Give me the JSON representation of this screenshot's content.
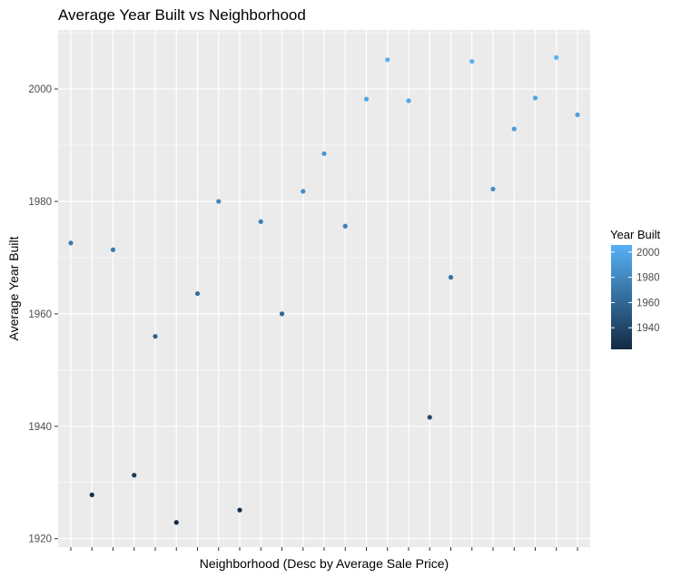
{
  "chart_data": {
    "type": "scatter",
    "title": "Average Year Built vs Neighborhood",
    "xlabel": "Neighborhood (Desc by Average Sale Price)",
    "ylabel": "Average Year Built",
    "x_tick_labels_shown": false,
    "ylim": [
      1918.5,
      2010.5
    ],
    "y_ticks": [
      1920,
      1940,
      1960,
      1980,
      2000
    ],
    "grid": true,
    "background": "#ebebeb",
    "grid_color": "#ffffff",
    "x": [
      1,
      2,
      3,
      4,
      5,
      6,
      7,
      8,
      9,
      10,
      11,
      12,
      13,
      14,
      15,
      16,
      17,
      18,
      19,
      20,
      21,
      22,
      23,
      24,
      25
    ],
    "values": [
      1972.6,
      1927.8,
      1971.4,
      1931.3,
      1956.0,
      1922.9,
      1963.6,
      1980.0,
      1925.1,
      1976.4,
      1960.0,
      1981.8,
      1988.5,
      1975.6,
      1998.2,
      2005.2,
      1997.9,
      1941.6,
      1966.5,
      2004.9,
      1982.2,
      1992.9,
      1998.4,
      2005.6,
      1995.4
    ],
    "color_scale": {
      "title": "Year Built",
      "low_color": "#132b43",
      "high_color": "#56b1f7",
      "range": [
        1922.9,
        2005.6
      ],
      "ticks": [
        1940,
        1960,
        1980,
        2000
      ]
    }
  }
}
